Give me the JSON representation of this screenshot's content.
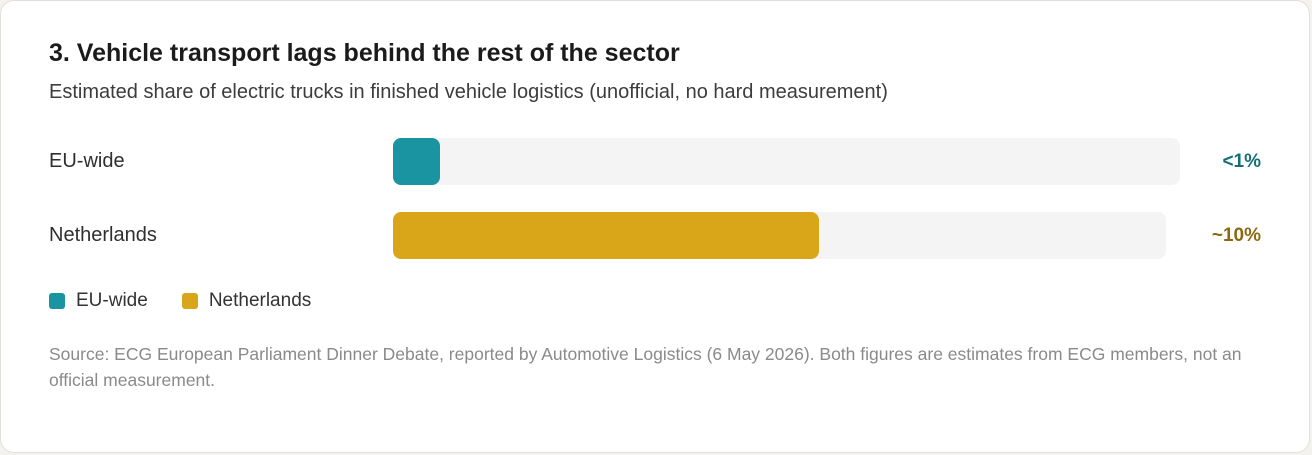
{
  "chart_data": {
    "type": "bar",
    "orientation": "horizontal",
    "title": "3. Vehicle transport lags behind the rest of the sector",
    "subtitle": "Estimated share of electric trucks in finished vehicle logistics (unofficial, no hard measurement)",
    "categories": [
      "EU-wide",
      "Netherlands"
    ],
    "values": [
      1,
      10
    ],
    "value_labels": [
      "<1%",
      "~10%"
    ],
    "colors": [
      "#1a94a0",
      "#d9a61a"
    ],
    "label_colors": [
      "#146f79",
      "#8a6a10"
    ],
    "legend": [
      "EU-wide",
      "Netherlands"
    ],
    "legend_position": "bottom-left",
    "source": "Source: ECG European Parliament Dinner Debate, reported by Automotive Logistics (6 May 2026). Both figures are estimates from ECG members, not an official measurement."
  }
}
